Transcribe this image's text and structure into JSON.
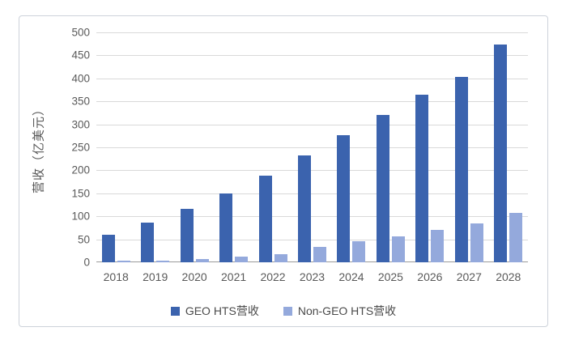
{
  "chart_data": {
    "type": "bar",
    "title": "",
    "categories": [
      "2018",
      "2019",
      "2020",
      "2021",
      "2022",
      "2023",
      "2024",
      "2025",
      "2026",
      "2027",
      "2028"
    ],
    "series": [
      {
        "name": "GEO HTS营收",
        "color": "#3b63ae",
        "values": [
          60,
          86,
          116,
          150,
          188,
          232,
          277,
          320,
          364,
          404,
          474
        ]
      },
      {
        "name": "Non-GEO HTS营收",
        "color": "#94a9dc",
        "values": [
          3,
          4,
          7,
          12,
          18,
          33,
          45,
          57,
          70,
          85,
          108
        ]
      }
    ],
    "xlabel": "",
    "ylabel": "营收（亿美元）",
    "ylim": [
      0,
      500
    ],
    "yticks": [
      0,
      50,
      100,
      150,
      200,
      250,
      300,
      350,
      400,
      450,
      500
    ],
    "grid": "horizontal",
    "legend_position": "bottom"
  },
  "colors": {
    "gridline": "#d9d9d9",
    "axis_line": "#9b9b9b",
    "tick_text": "#595959",
    "frame_border": "#cdd2da",
    "background": "#ffffff"
  }
}
